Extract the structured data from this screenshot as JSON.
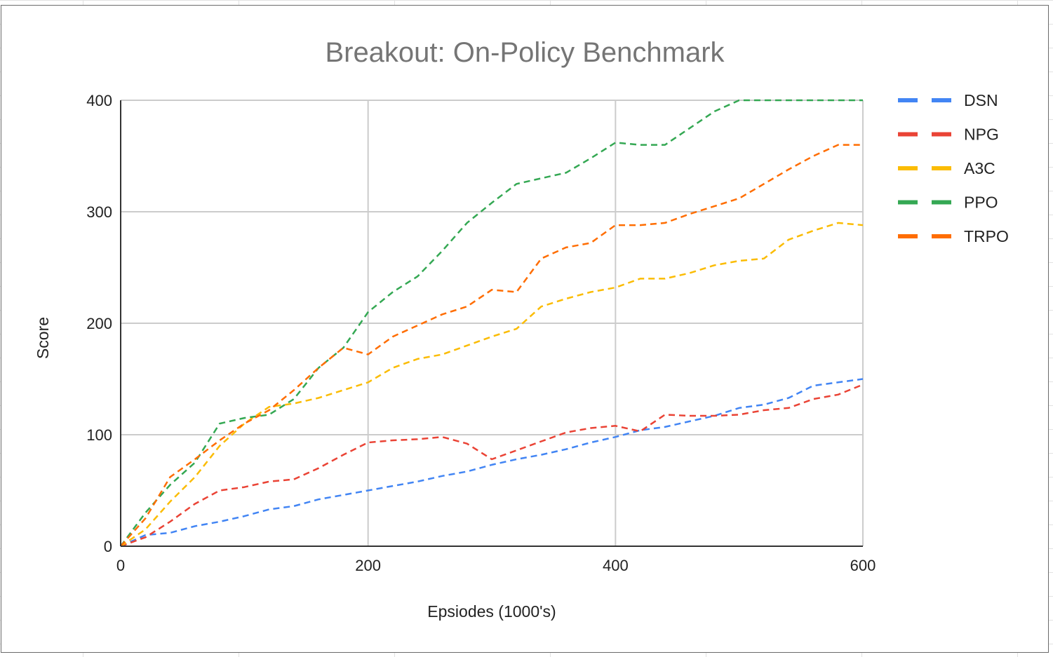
{
  "chart_data": {
    "type": "line",
    "title": "Breakout: On-Policy Benchmark",
    "xlabel": "Epsiodes (1000's)",
    "ylabel": "Score",
    "xlim": [
      0,
      600
    ],
    "ylim": [
      0,
      400
    ],
    "x_ticks": [
      "0",
      "200",
      "400",
      "600"
    ],
    "y_ticks": [
      "0",
      "100",
      "200",
      "300",
      "400"
    ],
    "grid": true,
    "line_style": "dashed",
    "legend_position": "right",
    "x": [
      0,
      20,
      40,
      60,
      80,
      100,
      120,
      140,
      160,
      180,
      200,
      220,
      240,
      260,
      280,
      300,
      320,
      340,
      360,
      380,
      400,
      420,
      440,
      460,
      480,
      500,
      520,
      540,
      560,
      580,
      600
    ],
    "series": [
      {
        "name": "DSN",
        "color": "#4285f4",
        "values": [
          0,
          10,
          12,
          18,
          22,
          27,
          33,
          36,
          42,
          46,
          50,
          54,
          58,
          63,
          67,
          73,
          78,
          82,
          87,
          93,
          98,
          104,
          107,
          112,
          117,
          124,
          127,
          133,
          144,
          147,
          150
        ]
      },
      {
        "name": "NPG",
        "color": "#ea4335",
        "values": [
          0,
          8,
          22,
          38,
          50,
          53,
          58,
          60,
          70,
          82,
          93,
          95,
          96,
          98,
          92,
          78,
          86,
          94,
          102,
          106,
          108,
          103,
          118,
          117,
          117,
          118,
          122,
          124,
          132,
          136,
          145
        ]
      },
      {
        "name": "A3C",
        "color": "#fbbc04",
        "values": [
          0,
          15,
          40,
          62,
          90,
          110,
          125,
          128,
          133,
          140,
          147,
          160,
          168,
          172,
          180,
          188,
          195,
          215,
          222,
          228,
          232,
          240,
          240,
          245,
          252,
          256,
          258,
          275,
          283,
          290,
          288
        ]
      },
      {
        "name": "PPO",
        "color": "#34a853",
        "values": [
          0,
          30,
          55,
          75,
          110,
          115,
          118,
          132,
          160,
          178,
          210,
          228,
          242,
          265,
          290,
          308,
          325,
          330,
          335,
          348,
          362,
          360,
          360,
          375,
          390,
          400,
          400,
          400,
          400,
          400,
          400
        ]
      },
      {
        "name": "TRPO",
        "color": "#ff6d01",
        "values": [
          0,
          25,
          62,
          78,
          95,
          110,
          122,
          140,
          160,
          178,
          172,
          188,
          198,
          208,
          215,
          230,
          228,
          258,
          268,
          272,
          288,
          288,
          290,
          298,
          305,
          312,
          325,
          338,
          350,
          360,
          360
        ]
      }
    ]
  }
}
